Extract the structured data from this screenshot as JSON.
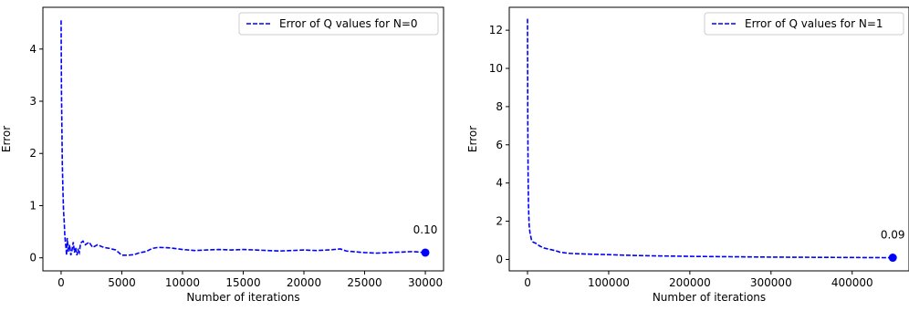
{
  "colors": {
    "series": "#0000ff",
    "axis": "#000000",
    "legend_border": "#cccccc"
  },
  "chart_data": [
    {
      "type": "line",
      "xlabel": "Number of iterations",
      "ylabel": "Error",
      "xlim": [
        -1500,
        31500
      ],
      "ylim": [
        -0.25,
        4.8
      ],
      "xticks": [
        0,
        5000,
        10000,
        15000,
        20000,
        25000,
        30000
      ],
      "yticks": [
        0,
        1,
        2,
        3,
        4
      ],
      "legend_placement": "top-right",
      "grid": false,
      "series": [
        {
          "name": "Error of Q values for N=0",
          "line_style": "dashed",
          "x": [
            0,
            30,
            60,
            100,
            150,
            200,
            250,
            300,
            350,
            400,
            450,
            500,
            600,
            700,
            800,
            900,
            1000,
            1100,
            1200,
            1300,
            1400,
            1500,
            1600,
            1800,
            2000,
            2300,
            2600,
            3000,
            3500,
            4000,
            4500,
            5000,
            5500,
            6000,
            6500,
            7000,
            7500,
            8000,
            9000,
            10000,
            11000,
            12000,
            13000,
            14000,
            15000,
            16000,
            17000,
            18000,
            19000,
            20000,
            21000,
            22000,
            23000,
            23500,
            24000,
            25000,
            26000,
            27000,
            28000,
            29000,
            30000
          ],
          "y": [
            4.55,
            3.2,
            2.6,
            1.8,
            1.3,
            0.9,
            0.72,
            0.45,
            0.3,
            0.2,
            0.05,
            0.38,
            0.12,
            0.25,
            0.05,
            0.15,
            0.3,
            0.1,
            0.2,
            0.05,
            0.15,
            0.1,
            0.28,
            0.32,
            0.25,
            0.3,
            0.2,
            0.25,
            0.2,
            0.18,
            0.15,
            0.05,
            0.05,
            0.06,
            0.1,
            0.12,
            0.18,
            0.2,
            0.19,
            0.16,
            0.14,
            0.15,
            0.16,
            0.15,
            0.16,
            0.15,
            0.14,
            0.13,
            0.14,
            0.15,
            0.14,
            0.15,
            0.17,
            0.13,
            0.12,
            0.1,
            0.09,
            0.1,
            0.11,
            0.12,
            0.1
          ]
        }
      ],
      "endpoint": {
        "x": 30000,
        "y": 0.1,
        "label": "0.10"
      }
    },
    {
      "type": "line",
      "xlabel": "Number of iterations",
      "ylabel": "Error",
      "xlim": [
        -22500,
        470000
      ],
      "ylim": [
        -0.6,
        13.2
      ],
      "xticks": [
        0,
        100000,
        200000,
        300000,
        400000
      ],
      "yticks": [
        0,
        2,
        4,
        6,
        8,
        10,
        12
      ],
      "legend_placement": "top-right",
      "grid": false,
      "series": [
        {
          "name": "Error of Q values for N=1",
          "line_style": "dashed",
          "x": [
            0,
            300,
            700,
            1200,
            2000,
            3000,
            4000,
            5000,
            7000,
            10000,
            15000,
            20000,
            25000,
            30000,
            35000,
            40000,
            50000,
            60000,
            80000,
            100000,
            120000,
            150000,
            200000,
            250000,
            300000,
            350000,
            400000,
            450000
          ],
          "y": [
            12.6,
            7.5,
            4.5,
            2.8,
            1.8,
            1.4,
            1.2,
            1.0,
            0.9,
            0.85,
            0.7,
            0.6,
            0.55,
            0.5,
            0.45,
            0.38,
            0.32,
            0.3,
            0.27,
            0.25,
            0.22,
            0.19,
            0.16,
            0.14,
            0.12,
            0.11,
            0.1,
            0.09
          ]
        }
      ],
      "endpoint": {
        "x": 450000,
        "y": 0.09,
        "label": "0.09"
      }
    }
  ]
}
